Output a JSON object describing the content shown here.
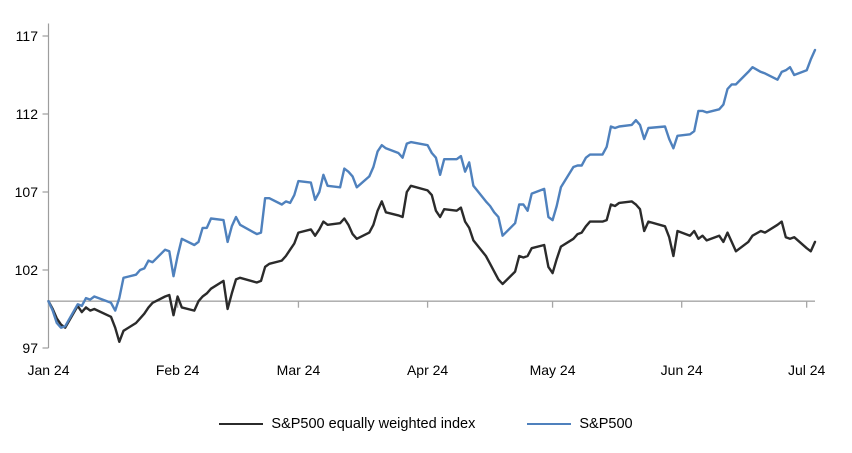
{
  "chart_data": {
    "type": "line",
    "title": "",
    "x_axis": {
      "tick_labels": [
        "Jan 24",
        "Feb 24",
        "Mar 24",
        "Apr 24",
        "May 24",
        "Jun 24",
        "Jul 24"
      ],
      "tick_days": [
        0,
        31,
        60,
        91,
        121,
        152,
        182
      ],
      "domain_days": [
        0,
        184
      ]
    },
    "y_axis": {
      "ticks": [
        97,
        102,
        107,
        112,
        117
      ],
      "range": [
        97,
        117.8
      ],
      "baseline_value": 100
    },
    "grid": "baseline-only",
    "legend_position": "bottom",
    "dates": [
      "2024-01-01",
      "2024-01-02",
      "2024-01-03",
      "2024-01-04",
      "2024-01-05",
      "2024-01-08",
      "2024-01-09",
      "2024-01-10",
      "2024-01-11",
      "2024-01-12",
      "2024-01-16",
      "2024-01-17",
      "2024-01-18",
      "2024-01-19",
      "2024-01-22",
      "2024-01-23",
      "2024-01-24",
      "2024-01-25",
      "2024-01-26",
      "2024-01-29",
      "2024-01-30",
      "2024-01-31",
      "2024-02-01",
      "2024-02-02",
      "2024-02-05",
      "2024-02-06",
      "2024-02-07",
      "2024-02-08",
      "2024-02-09",
      "2024-02-12",
      "2024-02-13",
      "2024-02-14",
      "2024-02-15",
      "2024-02-16",
      "2024-02-20",
      "2024-02-21",
      "2024-02-22",
      "2024-02-23",
      "2024-02-26",
      "2024-02-27",
      "2024-02-28",
      "2024-02-29",
      "2024-03-01",
      "2024-03-04",
      "2024-03-05",
      "2024-03-06",
      "2024-03-07",
      "2024-03-08",
      "2024-03-11",
      "2024-03-12",
      "2024-03-13",
      "2024-03-14",
      "2024-03-15",
      "2024-03-18",
      "2024-03-19",
      "2024-03-20",
      "2024-03-21",
      "2024-03-22",
      "2024-03-25",
      "2024-03-26",
      "2024-03-27",
      "2024-03-28",
      "2024-04-01",
      "2024-04-02",
      "2024-04-03",
      "2024-04-04",
      "2024-04-05",
      "2024-04-08",
      "2024-04-09",
      "2024-04-10",
      "2024-04-11",
      "2024-04-12",
      "2024-04-15",
      "2024-04-16",
      "2024-04-17",
      "2024-04-18",
      "2024-04-19",
      "2024-04-22",
      "2024-04-23",
      "2024-04-24",
      "2024-04-25",
      "2024-04-26",
      "2024-04-29",
      "2024-04-30",
      "2024-05-01",
      "2024-05-02",
      "2024-05-03",
      "2024-05-06",
      "2024-05-07",
      "2024-05-08",
      "2024-05-09",
      "2024-05-10",
      "2024-05-13",
      "2024-05-14",
      "2024-05-15",
      "2024-05-16",
      "2024-05-17",
      "2024-05-20",
      "2024-05-21",
      "2024-05-22",
      "2024-05-23",
      "2024-05-24",
      "2024-05-28",
      "2024-05-29",
      "2024-05-30",
      "2024-05-31",
      "2024-06-03",
      "2024-06-04",
      "2024-06-05",
      "2024-06-06",
      "2024-06-07",
      "2024-06-10",
      "2024-06-11",
      "2024-06-12",
      "2024-06-13",
      "2024-06-14",
      "2024-06-17",
      "2024-06-18",
      "2024-06-20",
      "2024-06-21",
      "2024-06-24",
      "2024-06-25",
      "2024-06-26",
      "2024-06-27",
      "2024-06-28",
      "2024-07-01",
      "2024-07-02",
      "2024-07-03"
    ],
    "series": [
      {
        "name": "S&P500 equally weighted index",
        "color": "#2b2b2b",
        "values": [
          100,
          99.5,
          98.9,
          98.5,
          98.3,
          99.7,
          99.3,
          99.6,
          99.4,
          99.5,
          99.0,
          98.3,
          97.4,
          98.1,
          98.6,
          98.9,
          99.2,
          99.6,
          99.9,
          100.3,
          100.4,
          99.1,
          100.3,
          99.6,
          99.4,
          100.0,
          100.3,
          100.5,
          100.8,
          101.3,
          99.5,
          100.5,
          101.4,
          101.5,
          101.2,
          101.3,
          102.2,
          102.4,
          102.6,
          102.9,
          103.3,
          103.7,
          104.4,
          104.6,
          104.2,
          104.6,
          105.1,
          104.9,
          105.0,
          105.3,
          104.9,
          104.3,
          104.0,
          104.4,
          104.9,
          105.8,
          106.4,
          105.7,
          105.5,
          105.4,
          107.0,
          107.4,
          107.1,
          106.8,
          105.8,
          105.4,
          105.9,
          105.8,
          106.0,
          105.1,
          104.7,
          103.9,
          102.9,
          102.4,
          101.9,
          101.4,
          101.1,
          101.9,
          102.9,
          102.8,
          102.9,
          103.4,
          103.6,
          102.2,
          101.8,
          102.7,
          103.5,
          104.0,
          104.3,
          104.4,
          104.8,
          105.1,
          105.1,
          105.2,
          106.2,
          106.1,
          106.3,
          106.4,
          106.2,
          105.9,
          104.5,
          105.1,
          104.8,
          104.1,
          102.9,
          104.5,
          104.2,
          104.5,
          104.0,
          104.2,
          103.9,
          104.2,
          103.8,
          104.4,
          103.8,
          103.2,
          103.8,
          104.2,
          104.5,
          104.4,
          104.9,
          105.1,
          104.1,
          104.0,
          104.1,
          103.4,
          103.2,
          103.8
        ]
      },
      {
        "name": "S&P500",
        "color": "#4f81bd",
        "values": [
          100,
          99.4,
          98.6,
          98.3,
          98.4,
          99.8,
          99.7,
          100.2,
          100.1,
          100.3,
          99.9,
          99.4,
          100.2,
          101.5,
          101.7,
          102.0,
          102.1,
          102.6,
          102.5,
          103.3,
          103.2,
          101.6,
          102.9,
          104.0,
          103.6,
          103.8,
          104.7,
          104.7,
          105.3,
          105.2,
          103.8,
          104.8,
          105.4,
          104.9,
          104.3,
          104.4,
          106.6,
          106.6,
          106.2,
          106.4,
          106.3,
          106.8,
          107.7,
          107.6,
          106.5,
          107.0,
          108.1,
          107.4,
          107.3,
          108.5,
          108.3,
          108.0,
          107.3,
          108.0,
          108.6,
          109.6,
          110.0,
          109.8,
          109.5,
          109.2,
          110.1,
          110.2,
          110.0,
          109.5,
          109.2,
          108.1,
          109.1,
          109.1,
          109.3,
          108.3,
          108.9,
          107.4,
          106.4,
          106.1,
          105.7,
          105.4,
          104.2,
          105.0,
          106.2,
          106.2,
          105.8,
          106.9,
          107.2,
          105.4,
          105.2,
          106.1,
          107.3,
          108.6,
          108.7,
          108.7,
          109.2,
          109.4,
          109.4,
          109.9,
          111.2,
          111.1,
          111.2,
          111.3,
          111.6,
          111.3,
          110.4,
          111.1,
          111.2,
          110.4,
          109.8,
          110.6,
          110.7,
          110.9,
          112.2,
          112.2,
          112.1,
          112.3,
          112.6,
          113.6,
          113.9,
          113.9,
          114.7,
          115.0,
          114.7,
          114.6,
          114.2,
          114.7,
          114.8,
          115.0,
          114.5,
          114.8,
          115.5,
          116.1
        ]
      }
    ],
    "axis_color": "#9d9d9d",
    "baseline_color": "#a6a6a6",
    "label_color": "#000000"
  }
}
